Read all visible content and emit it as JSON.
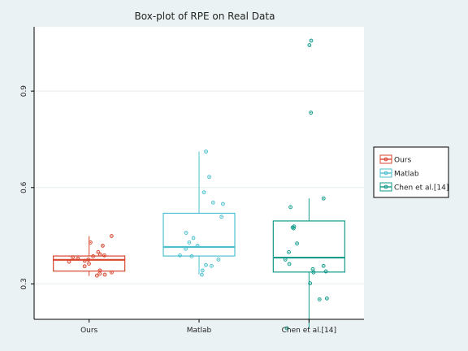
{
  "chart_data": {
    "type": "box",
    "title": "Box-plot of RPE on Real Data",
    "xlabel": "",
    "ylabel": "",
    "categories": [
      "Ours",
      "Matlab",
      "Chen et al.[14]"
    ],
    "ylim": [
      0.19,
      1.1
    ],
    "yticks": [
      0.3,
      0.6,
      0.9
    ],
    "grid": true,
    "legend_position": "right",
    "colors": [
      "#d9452e",
      "#4cc0cf",
      "#119b8a"
    ],
    "boxes": [
      {
        "name": "Ours",
        "whisker_low": 0.325,
        "q1": 0.34,
        "median": 0.375,
        "q3": 0.387,
        "whisker_high": 0.449
      },
      {
        "name": "Matlab",
        "whisker_low": 0.33,
        "q1": 0.387,
        "median": 0.415,
        "q3": 0.52,
        "whisker_high": 0.712
      },
      {
        "name": "Chen et al.[14]",
        "whisker_low": 0.162,
        "q1": 0.337,
        "median": 0.382,
        "q3": 0.496,
        "whisker_high": 0.566
      }
    ],
    "points": [
      [
        0.449,
        0.429,
        0.419,
        0.399,
        0.392,
        0.389,
        0.386,
        0.383,
        0.379,
        0.376,
        0.372,
        0.369,
        0.363,
        0.355,
        0.342,
        0.336,
        0.332,
        0.329,
        0.326
      ],
      [
        0.712,
        0.633,
        0.585,
        0.553,
        0.549,
        0.509,
        0.459,
        0.443,
        0.429,
        0.419,
        0.409,
        0.389,
        0.386,
        0.376,
        0.359,
        0.356,
        0.342,
        0.329
      ],
      [
        1.043,
        1.057,
        0.833,
        0.566,
        0.539,
        0.479,
        0.476,
        0.473,
        0.426,
        0.399,
        0.376,
        0.362,
        0.356,
        0.346,
        0.339,
        0.336,
        0.302,
        0.255,
        0.252,
        0.162
      ]
    ]
  }
}
